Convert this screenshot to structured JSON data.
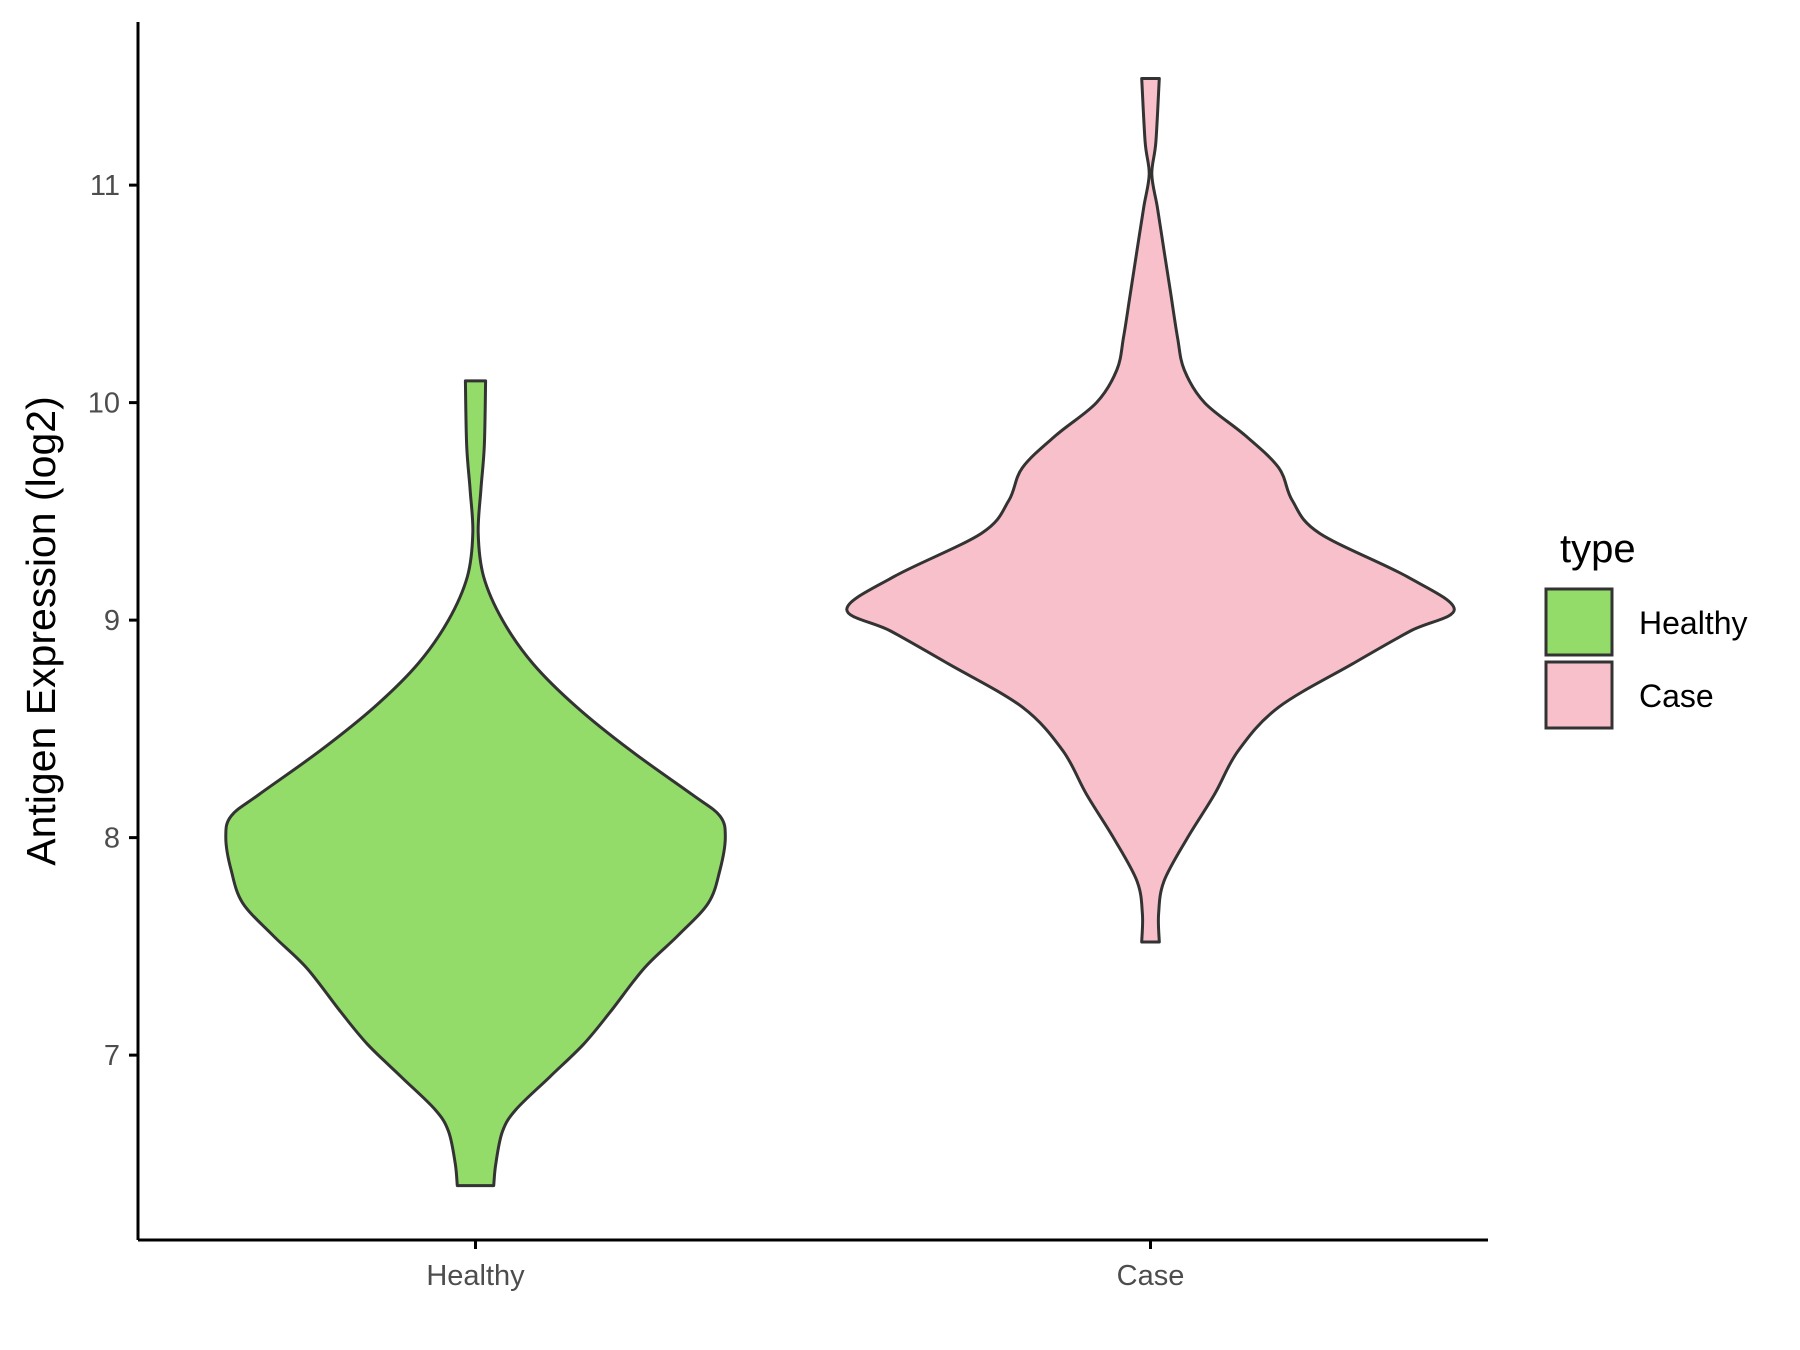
{
  "chart_data": {
    "type": "violin",
    "categories": [
      "Healthy",
      "Case"
    ],
    "ylabel": "Antigen Expression (log2)",
    "xlabel": "",
    "title": "",
    "ylim": [
      6.15,
      11.75
    ],
    "yticks": [
      7,
      8,
      9,
      10,
      11
    ],
    "legend": {
      "title": "type",
      "position": "right",
      "entries": [
        {
          "label": "Healthy",
          "color": "#93dc6a"
        },
        {
          "label": "Case",
          "color": "#f7c0cb"
        }
      ]
    },
    "series": [
      {
        "name": "Healthy",
        "color": "#93dc6a",
        "range": [
          6.4,
          10.1
        ],
        "max_half_width": 0.37,
        "profile": [
          [
            6.4,
            0.027
          ],
          [
            6.5,
            0.03
          ],
          [
            6.65,
            0.04
          ],
          [
            6.75,
            0.06
          ],
          [
            6.9,
            0.11
          ],
          [
            7.05,
            0.16
          ],
          [
            7.2,
            0.2
          ],
          [
            7.4,
            0.25
          ],
          [
            7.55,
            0.3
          ],
          [
            7.7,
            0.345
          ],
          [
            7.85,
            0.362
          ],
          [
            8.0,
            0.37
          ],
          [
            8.1,
            0.362
          ],
          [
            8.2,
            0.32
          ],
          [
            8.4,
            0.23
          ],
          [
            8.6,
            0.15
          ],
          [
            8.8,
            0.085
          ],
          [
            9.0,
            0.04
          ],
          [
            9.2,
            0.012
          ],
          [
            9.4,
            0.004
          ],
          [
            9.6,
            0.008
          ],
          [
            9.8,
            0.013
          ],
          [
            10.1,
            0.015
          ]
        ]
      },
      {
        "name": "Case",
        "color": "#f7c0cb",
        "range": [
          7.52,
          11.49
        ],
        "max_half_width": 0.45,
        "profile": [
          [
            7.52,
            0.013
          ],
          [
            7.65,
            0.012
          ],
          [
            7.8,
            0.02
          ],
          [
            8.0,
            0.055
          ],
          [
            8.2,
            0.095
          ],
          [
            8.4,
            0.13
          ],
          [
            8.6,
            0.19
          ],
          [
            8.8,
            0.3
          ],
          [
            8.95,
            0.385
          ],
          [
            9.05,
            0.45
          ],
          [
            9.2,
            0.38
          ],
          [
            9.4,
            0.25
          ],
          [
            9.55,
            0.21
          ],
          [
            9.7,
            0.19
          ],
          [
            9.85,
            0.14
          ],
          [
            10.0,
            0.08
          ],
          [
            10.15,
            0.05
          ],
          [
            10.3,
            0.04
          ],
          [
            10.5,
            0.03
          ],
          [
            10.7,
            0.02
          ],
          [
            10.9,
            0.01
          ],
          [
            11.05,
            0.002
          ],
          [
            11.2,
            0.008
          ],
          [
            11.49,
            0.013
          ]
        ]
      }
    ]
  }
}
